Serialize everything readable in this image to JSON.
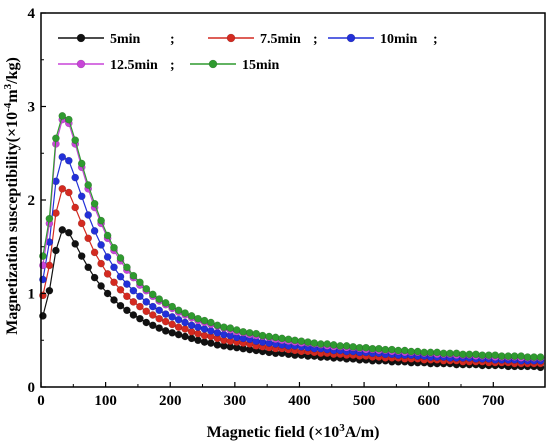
{
  "chart_data": {
    "type": "line",
    "title": "",
    "xlabel_main": "Magnetic field (×10",
    "xlabel_sup": "3",
    "xlabel_tail": "A/m)",
    "ylabel_main": "Magnetization susceptibility(×10",
    "ylabel_sup1": "-4",
    "ylabel_mid": "m",
    "ylabel_sup2": "3",
    "ylabel_tail": "/kg)",
    "xlim": [
      0,
      780
    ],
    "ylim": [
      0,
      4
    ],
    "xticks": [
      0,
      100,
      200,
      300,
      400,
      500,
      600,
      700
    ],
    "yticks": [
      0,
      1,
      2,
      3,
      4
    ],
    "grid": false,
    "legend_position": "top",
    "x": [
      3,
      13,
      23,
      33,
      43,
      53,
      63,
      73,
      83,
      93,
      103,
      113,
      123,
      133,
      143,
      153,
      163,
      173,
      183,
      193,
      203,
      213,
      223,
      233,
      243,
      253,
      263,
      273,
      283,
      293,
      303,
      313,
      323,
      333,
      343,
      353,
      363,
      373,
      383,
      393,
      403,
      413,
      423,
      433,
      443,
      453,
      463,
      473,
      483,
      493,
      503,
      513,
      523,
      533,
      543,
      553,
      563,
      573,
      583,
      593,
      603,
      613,
      623,
      633,
      643,
      653,
      663,
      673,
      683,
      693,
      703,
      713,
      723,
      733,
      743,
      753,
      763,
      773
    ],
    "series": [
      {
        "name": "5min",
        "separator": ";",
        "color": "#111111",
        "values": [
          0.76,
          1.03,
          1.46,
          1.68,
          1.65,
          1.53,
          1.4,
          1.28,
          1.17,
          1.08,
          1.0,
          0.93,
          0.87,
          0.82,
          0.77,
          0.73,
          0.69,
          0.66,
          0.63,
          0.6,
          0.58,
          0.56,
          0.54,
          0.52,
          0.5,
          0.48,
          0.47,
          0.45,
          0.44,
          0.43,
          0.42,
          0.41,
          0.4,
          0.39,
          0.38,
          0.37,
          0.36,
          0.36,
          0.35,
          0.34,
          0.34,
          0.33,
          0.33,
          0.32,
          0.32,
          0.31,
          0.31,
          0.3,
          0.3,
          0.29,
          0.29,
          0.28,
          0.28,
          0.28,
          0.27,
          0.27,
          0.27,
          0.26,
          0.26,
          0.26,
          0.25,
          0.25,
          0.25,
          0.25,
          0.24,
          0.24,
          0.24,
          0.24,
          0.23,
          0.23,
          0.23,
          0.23,
          0.22,
          0.22,
          0.22,
          0.22,
          0.22,
          0.21
        ]
      },
      {
        "name": "7.5min",
        "separator": ";",
        "color": "#d42a20",
        "values": [
          0.98,
          1.3,
          1.86,
          2.12,
          2.08,
          1.92,
          1.75,
          1.59,
          1.44,
          1.32,
          1.21,
          1.12,
          1.04,
          0.97,
          0.91,
          0.86,
          0.81,
          0.77,
          0.73,
          0.7,
          0.67,
          0.64,
          0.62,
          0.59,
          0.57,
          0.55,
          0.54,
          0.52,
          0.5,
          0.49,
          0.48,
          0.47,
          0.46,
          0.44,
          0.43,
          0.42,
          0.41,
          0.41,
          0.4,
          0.39,
          0.38,
          0.38,
          0.37,
          0.36,
          0.36,
          0.35,
          0.35,
          0.34,
          0.34,
          0.33,
          0.33,
          0.32,
          0.32,
          0.31,
          0.31,
          0.31,
          0.3,
          0.3,
          0.3,
          0.29,
          0.29,
          0.29,
          0.28,
          0.28,
          0.28,
          0.27,
          0.27,
          0.27,
          0.27,
          0.26,
          0.26,
          0.26,
          0.26,
          0.25,
          0.25,
          0.25,
          0.25,
          0.25
        ]
      },
      {
        "name": "10min",
        "separator": ";",
        "color": "#2230d8",
        "values": [
          1.15,
          1.55,
          2.2,
          2.46,
          2.42,
          2.24,
          2.04,
          1.84,
          1.67,
          1.52,
          1.39,
          1.28,
          1.18,
          1.1,
          1.03,
          0.97,
          0.91,
          0.86,
          0.82,
          0.78,
          0.75,
          0.72,
          0.69,
          0.66,
          0.64,
          0.62,
          0.6,
          0.58,
          0.56,
          0.55,
          0.53,
          0.52,
          0.51,
          0.49,
          0.48,
          0.47,
          0.46,
          0.45,
          0.44,
          0.44,
          0.43,
          0.42,
          0.41,
          0.41,
          0.4,
          0.39,
          0.39,
          0.38,
          0.38,
          0.37,
          0.37,
          0.36,
          0.36,
          0.35,
          0.35,
          0.34,
          0.34,
          0.34,
          0.33,
          0.33,
          0.32,
          0.32,
          0.32,
          0.31,
          0.31,
          0.31,
          0.31,
          0.3,
          0.3,
          0.3,
          0.29,
          0.29,
          0.29,
          0.29,
          0.28,
          0.28,
          0.28,
          0.28
        ]
      },
      {
        "name": "12.5min",
        "separator": ";",
        "color": "#c845d8",
        "values": [
          1.3,
          1.75,
          2.6,
          2.86,
          2.82,
          2.6,
          2.35,
          2.12,
          1.92,
          1.75,
          1.59,
          1.46,
          1.35,
          1.25,
          1.17,
          1.09,
          1.03,
          0.97,
          0.92,
          0.88,
          0.84,
          0.8,
          0.77,
          0.74,
          0.71,
          0.69,
          0.67,
          0.65,
          0.63,
          0.61,
          0.59,
          0.58,
          0.56,
          0.55,
          0.54,
          0.53,
          0.51,
          0.5,
          0.49,
          0.48,
          0.47,
          0.47,
          0.46,
          0.45,
          0.44,
          0.43,
          0.43,
          0.42,
          0.42,
          0.41,
          0.4,
          0.4,
          0.39,
          0.39,
          0.38,
          0.38,
          0.37,
          0.37,
          0.37,
          0.36,
          0.36,
          0.35,
          0.35,
          0.35,
          0.34,
          0.34,
          0.34,
          0.33,
          0.33,
          0.33,
          0.32,
          0.32,
          0.32,
          0.32,
          0.31,
          0.31,
          0.31,
          0.31
        ]
      },
      {
        "name": "15min",
        "separator": "",
        "color": "#2f9a2f",
        "values": [
          1.4,
          1.8,
          2.66,
          2.9,
          2.86,
          2.64,
          2.39,
          2.16,
          1.96,
          1.78,
          1.62,
          1.49,
          1.38,
          1.28,
          1.19,
          1.12,
          1.05,
          0.99,
          0.94,
          0.9,
          0.86,
          0.82,
          0.79,
          0.76,
          0.73,
          0.71,
          0.69,
          0.66,
          0.64,
          0.63,
          0.61,
          0.59,
          0.58,
          0.57,
          0.55,
          0.54,
          0.53,
          0.52,
          0.51,
          0.5,
          0.49,
          0.48,
          0.47,
          0.46,
          0.46,
          0.45,
          0.44,
          0.44,
          0.43,
          0.42,
          0.42,
          0.41,
          0.41,
          0.4,
          0.4,
          0.39,
          0.39,
          0.38,
          0.38,
          0.37,
          0.37,
          0.37,
          0.36,
          0.36,
          0.36,
          0.35,
          0.35,
          0.35,
          0.34,
          0.34,
          0.34,
          0.33,
          0.33,
          0.33,
          0.33,
          0.32,
          0.32,
          0.32
        ]
      }
    ]
  }
}
